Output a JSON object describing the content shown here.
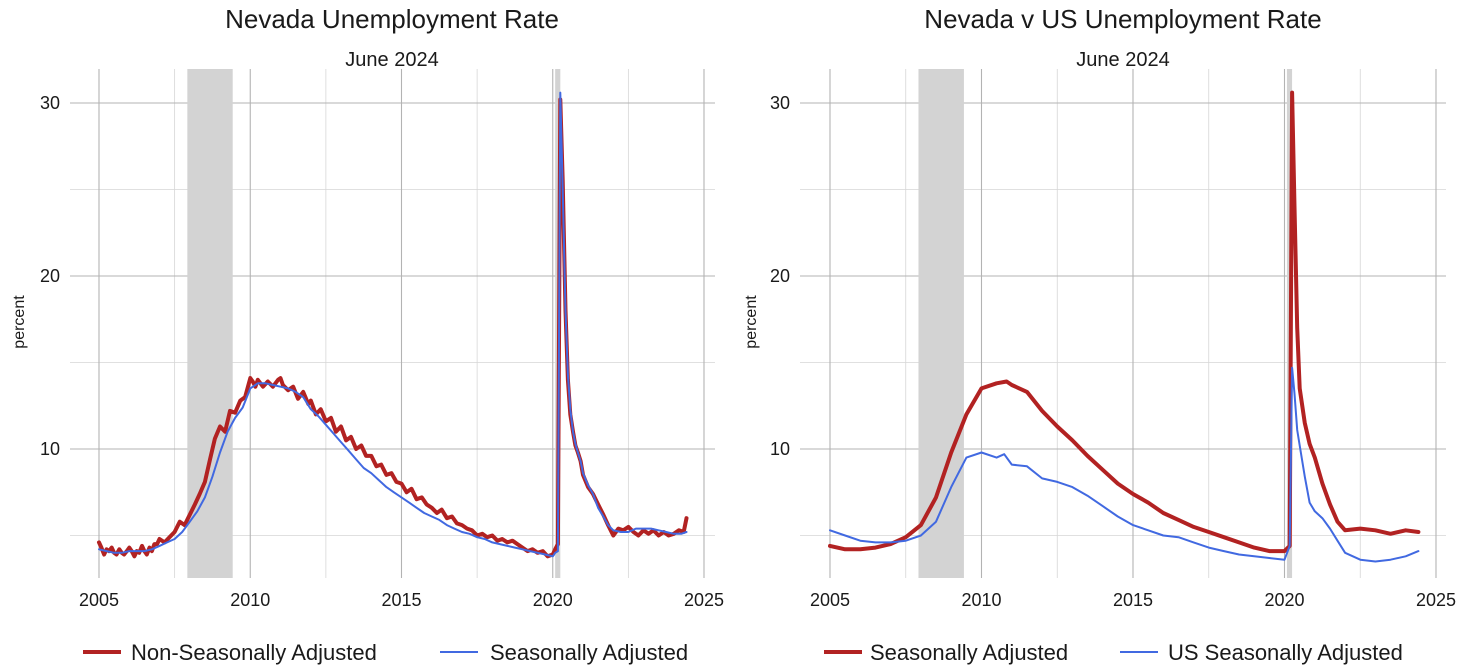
{
  "chart_data": [
    {
      "type": "line",
      "title": "Nevada Unemployment Rate",
      "subtitle": "June 2024",
      "xlabel": "",
      "ylabel": "percent",
      "xlim": [
        2005,
        2025
      ],
      "ylim": [
        2.8,
        31.6
      ],
      "xticks": [
        2005,
        2010,
        2015,
        2020,
        2025
      ],
      "yticks": [
        10,
        20,
        30
      ],
      "grid": true,
      "legend_position": "bottom",
      "recessions": [
        [
          2007.92,
          2009.42
        ],
        [
          2020.08,
          2020.25
        ]
      ],
      "colors": {
        "nsa": "#b22222",
        "sa": "#4169e1",
        "recession": "#d3d3d3"
      },
      "series": [
        {
          "name": "Non-Seasonally Adjusted",
          "color": "#b22222",
          "width": 4,
          "x": [
            2005.0,
            2005.08,
            2005.17,
            2005.25,
            2005.33,
            2005.42,
            2005.5,
            2005.58,
            2005.67,
            2005.75,
            2005.83,
            2005.92,
            2006.0,
            2006.08,
            2006.17,
            2006.25,
            2006.33,
            2006.42,
            2006.5,
            2006.58,
            2006.67,
            2006.75,
            2006.83,
            2006.92,
            2007.0,
            2007.17,
            2007.33,
            2007.5,
            2007.67,
            2007.83,
            2008.0,
            2008.17,
            2008.33,
            2008.5,
            2008.67,
            2008.83,
            2009.0,
            2009.17,
            2009.33,
            2009.5,
            2009.67,
            2009.83,
            2010.0,
            2010.08,
            2010.17,
            2010.25,
            2010.42,
            2010.58,
            2010.75,
            2010.92,
            2011.0,
            2011.08,
            2011.25,
            2011.42,
            2011.58,
            2011.75,
            2011.92,
            2012.0,
            2012.17,
            2012.33,
            2012.5,
            2012.67,
            2012.83,
            2013.0,
            2013.17,
            2013.33,
            2013.5,
            2013.67,
            2013.83,
            2014.0,
            2014.17,
            2014.33,
            2014.5,
            2014.67,
            2014.83,
            2015.0,
            2015.17,
            2015.33,
            2015.5,
            2015.67,
            2015.83,
            2016.0,
            2016.17,
            2016.33,
            2016.5,
            2016.67,
            2016.83,
            2017.0,
            2017.17,
            2017.33,
            2017.5,
            2017.67,
            2017.83,
            2018.0,
            2018.17,
            2018.33,
            2018.5,
            2018.67,
            2018.83,
            2019.0,
            2019.17,
            2019.33,
            2019.5,
            2019.67,
            2019.83,
            2020.0,
            2020.08,
            2020.17,
            2020.25,
            2020.33,
            2020.42,
            2020.5,
            2020.58,
            2020.67,
            2020.75,
            2020.83,
            2020.92,
            2021.0,
            2021.17,
            2021.33,
            2021.5,
            2021.67,
            2021.83,
            2022.0,
            2022.17,
            2022.33,
            2022.5,
            2022.67,
            2022.83,
            2023.0,
            2023.17,
            2023.33,
            2023.5,
            2023.67,
            2023.83,
            2024.0,
            2024.17,
            2024.33,
            2024.42
          ],
          "y": [
            4.6,
            4.3,
            3.9,
            4.2,
            4.1,
            4.3,
            4.0,
            3.9,
            4.2,
            4.0,
            3.9,
            4.1,
            4.3,
            4.1,
            3.8,
            4.1,
            4.0,
            4.4,
            4.1,
            3.9,
            4.3,
            4.1,
            4.5,
            4.5,
            4.8,
            4.6,
            4.9,
            5.2,
            5.8,
            5.6,
            6.2,
            6.8,
            7.4,
            8.1,
            9.4,
            10.6,
            11.3,
            11.0,
            12.2,
            12.1,
            12.8,
            13.0,
            14.1,
            13.9,
            13.6,
            14.0,
            13.6,
            13.9,
            13.6,
            14.0,
            14.1,
            13.7,
            13.4,
            13.6,
            12.9,
            13.3,
            12.6,
            12.8,
            12.0,
            12.3,
            11.6,
            11.8,
            11.0,
            11.3,
            10.5,
            10.7,
            10.0,
            10.2,
            9.6,
            9.6,
            9.0,
            9.1,
            8.5,
            8.6,
            8.1,
            8.0,
            7.5,
            7.7,
            7.1,
            7.2,
            6.8,
            6.6,
            6.3,
            6.5,
            6.0,
            6.1,
            5.7,
            5.6,
            5.4,
            5.3,
            5.0,
            5.1,
            4.9,
            5.0,
            4.7,
            4.8,
            4.6,
            4.7,
            4.5,
            4.3,
            4.1,
            4.2,
            4.0,
            4.1,
            3.8,
            3.9,
            4.2,
            4.5,
            30.2,
            25.5,
            18.0,
            14.0,
            12.0,
            11.0,
            10.2,
            9.8,
            9.3,
            8.5,
            7.8,
            7.4,
            6.8,
            6.2,
            5.6,
            5.0,
            5.4,
            5.3,
            5.5,
            5.2,
            5.0,
            5.3,
            5.1,
            5.3,
            5.0,
            5.2,
            5.0,
            5.1,
            5.3,
            5.2,
            6.0
          ]
        },
        {
          "name": "Seasonally Adjusted",
          "color": "#4169e1",
          "width": 2,
          "x": [
            2005.0,
            2005.25,
            2005.5,
            2005.75,
            2006.0,
            2006.25,
            2006.5,
            2006.75,
            2007.0,
            2007.25,
            2007.5,
            2007.75,
            2008.0,
            2008.25,
            2008.5,
            2008.75,
            2009.0,
            2009.25,
            2009.5,
            2009.75,
            2010.0,
            2010.25,
            2010.5,
            2010.75,
            2011.0,
            2011.25,
            2011.5,
            2011.75,
            2012.0,
            2012.25,
            2012.5,
            2012.75,
            2013.0,
            2013.25,
            2013.5,
            2013.75,
            2014.0,
            2014.25,
            2014.5,
            2014.75,
            2015.0,
            2015.25,
            2015.5,
            2015.75,
            2016.0,
            2016.25,
            2016.5,
            2016.75,
            2017.0,
            2017.25,
            2017.5,
            2017.75,
            2018.0,
            2018.25,
            2018.5,
            2018.75,
            2019.0,
            2019.25,
            2019.5,
            2019.75,
            2020.0,
            2020.08,
            2020.17,
            2020.25,
            2020.33,
            2020.42,
            2020.5,
            2020.58,
            2020.67,
            2020.75,
            2020.83,
            2020.92,
            2021.0,
            2021.17,
            2021.33,
            2021.5,
            2021.67,
            2021.83,
            2022.0,
            2022.25,
            2022.5,
            2022.75,
            2023.0,
            2023.25,
            2023.5,
            2023.75,
            2024.0,
            2024.25,
            2024.42
          ],
          "y": [
            4.2,
            4.1,
            4.0,
            4.0,
            4.1,
            4.1,
            4.1,
            4.2,
            4.4,
            4.6,
            4.8,
            5.2,
            5.8,
            6.4,
            7.2,
            8.4,
            9.8,
            11.0,
            11.8,
            12.4,
            13.5,
            13.8,
            13.8,
            13.7,
            13.6,
            13.5,
            13.3,
            13.0,
            12.3,
            11.9,
            11.4,
            10.9,
            10.4,
            9.9,
            9.4,
            8.9,
            8.6,
            8.2,
            7.8,
            7.5,
            7.2,
            6.9,
            6.6,
            6.3,
            6.1,
            5.9,
            5.6,
            5.4,
            5.2,
            5.1,
            4.9,
            4.8,
            4.6,
            4.5,
            4.4,
            4.3,
            4.2,
            4.1,
            4.0,
            3.9,
            3.8,
            4.0,
            4.1,
            30.6,
            25.0,
            18.0,
            14.3,
            12.3,
            11.0,
            10.3,
            9.8,
            9.3,
            8.6,
            7.9,
            7.4,
            6.6,
            6.1,
            5.6,
            5.3,
            5.2,
            5.2,
            5.4,
            5.4,
            5.4,
            5.3,
            5.2,
            5.1,
            5.1,
            5.2
          ]
        }
      ]
    },
    {
      "type": "line",
      "title": "Nevada v US Unemployment Rate",
      "subtitle": "June 2024",
      "xlabel": "",
      "ylabel": "percent",
      "xlim": [
        2005,
        2025
      ],
      "ylim": [
        2.8,
        31.6
      ],
      "xticks": [
        2005,
        2010,
        2015,
        2020,
        2025
      ],
      "yticks": [
        10,
        20,
        30
      ],
      "grid": true,
      "legend_position": "bottom",
      "recessions": [
        [
          2007.92,
          2009.42
        ],
        [
          2020.08,
          2020.25
        ]
      ],
      "colors": {
        "nv": "#b22222",
        "us": "#4169e1",
        "recession": "#d3d3d3"
      },
      "series": [
        {
          "name": "Seasonally Adjusted",
          "color": "#b22222",
          "width": 4,
          "x": [
            2005.0,
            2005.5,
            2006.0,
            2006.5,
            2007.0,
            2007.5,
            2008.0,
            2008.5,
            2009.0,
            2009.5,
            2010.0,
            2010.5,
            2010.83,
            2011.0,
            2011.5,
            2012.0,
            2012.5,
            2013.0,
            2013.5,
            2014.0,
            2014.5,
            2015.0,
            2015.5,
            2016.0,
            2016.5,
            2017.0,
            2017.5,
            2018.0,
            2018.5,
            2019.0,
            2019.5,
            2020.0,
            2020.17,
            2020.25,
            2020.33,
            2020.42,
            2020.5,
            2020.67,
            2020.83,
            2021.0,
            2021.25,
            2021.5,
            2021.75,
            2022.0,
            2022.5,
            2023.0,
            2023.5,
            2024.0,
            2024.42
          ],
          "y": [
            4.4,
            4.2,
            4.2,
            4.3,
            4.5,
            4.9,
            5.6,
            7.2,
            9.8,
            12.0,
            13.5,
            13.8,
            13.9,
            13.7,
            13.3,
            12.2,
            11.3,
            10.5,
            9.6,
            8.8,
            8.0,
            7.4,
            6.9,
            6.3,
            5.9,
            5.5,
            5.2,
            4.9,
            4.6,
            4.3,
            4.1,
            4.1,
            4.4,
            30.6,
            24.0,
            17.0,
            13.5,
            11.5,
            10.3,
            9.5,
            8.0,
            6.8,
            5.8,
            5.3,
            5.4,
            5.3,
            5.1,
            5.3,
            5.2
          ]
        },
        {
          "name": "US Seasonally Adjusted",
          "color": "#4169e1",
          "width": 2,
          "x": [
            2005.0,
            2005.5,
            2006.0,
            2006.5,
            2007.0,
            2007.5,
            2008.0,
            2008.5,
            2009.0,
            2009.5,
            2010.0,
            2010.5,
            2010.75,
            2011.0,
            2011.5,
            2012.0,
            2012.5,
            2013.0,
            2013.5,
            2014.0,
            2014.5,
            2015.0,
            2015.5,
            2016.0,
            2016.5,
            2017.0,
            2017.5,
            2018.0,
            2018.5,
            2019.0,
            2019.5,
            2020.0,
            2020.17,
            2020.25,
            2020.33,
            2020.42,
            2020.5,
            2020.67,
            2020.83,
            2021.0,
            2021.25,
            2021.5,
            2021.75,
            2022.0,
            2022.5,
            2023.0,
            2023.5,
            2024.0,
            2024.42
          ],
          "y": [
            5.3,
            5.0,
            4.7,
            4.6,
            4.6,
            4.7,
            5.0,
            5.8,
            7.8,
            9.5,
            9.8,
            9.5,
            9.7,
            9.1,
            9.0,
            8.3,
            8.1,
            7.8,
            7.3,
            6.7,
            6.1,
            5.6,
            5.3,
            5.0,
            4.9,
            4.6,
            4.3,
            4.1,
            3.9,
            3.8,
            3.7,
            3.6,
            4.4,
            14.7,
            13.2,
            11.1,
            10.2,
            8.4,
            6.9,
            6.4,
            6.0,
            5.4,
            4.7,
            4.0,
            3.6,
            3.5,
            3.6,
            3.8,
            4.1
          ]
        }
      ]
    }
  ]
}
